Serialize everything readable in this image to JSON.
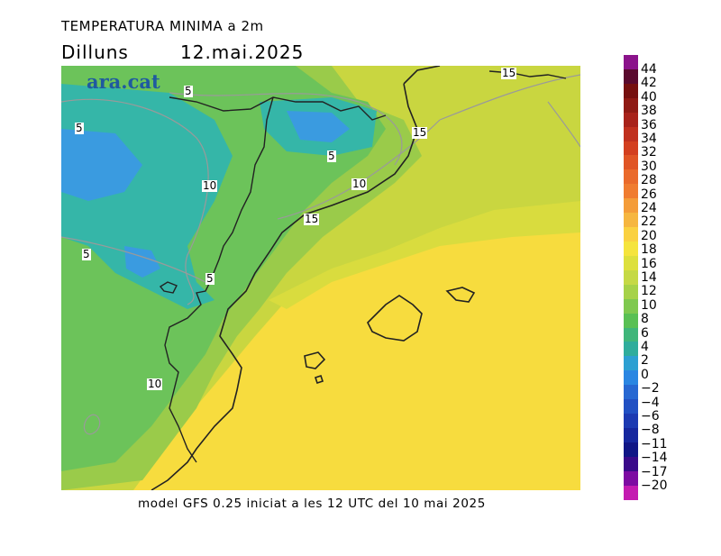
{
  "title": "TEMPERATURA MINIMA a 2m",
  "day": "Dilluns",
  "date": "12.mai.2025",
  "brand": "ara.cat",
  "footer": "model GFS 0.25 iniciat a les 12 UTC del 10 mai 2025",
  "contour_labels": [
    "5",
    "5",
    "5",
    "5",
    "5",
    "10",
    "10",
    "10",
    "15",
    "15",
    "15"
  ],
  "legend": {
    "ticks": [
      "44",
      "42",
      "40",
      "38",
      "36",
      "34",
      "32",
      "30",
      "28",
      "26",
      "24",
      "22",
      "20",
      "18",
      "16",
      "14",
      "12",
      "10",
      "8",
      "6",
      "4",
      "2",
      "0",
      "-2",
      "-4",
      "-6",
      "-8",
      "-11",
      "-14",
      "-17",
      "-20"
    ],
    "colors": [
      "#8b138b",
      "#5a0a2e",
      "#76100f",
      "#8f1a14",
      "#a8221a",
      "#c0301e",
      "#d33f1f",
      "#e05525",
      "#ea6a2b",
      "#f07c30",
      "#f49c39",
      "#f6b640",
      "#fad141",
      "#f5e43d",
      "#dde03d",
      "#c5d945",
      "#a6d248",
      "#7fc94f",
      "#59c054",
      "#3fb67a",
      "#2fad9c",
      "#2da0d2",
      "#2a86e2",
      "#2768d2",
      "#2150c3",
      "#1c3ab2",
      "#16279e",
      "#101686",
      "#3a0a8a",
      "#7d0ba2",
      "#c41bb1"
    ]
  },
  "color_scale": {
    "deep_cold": "#3a9be0",
    "cold": "#35b6a8",
    "cool": "#6cc35a",
    "mild": "#9acb4a",
    "warm": "#c9d640",
    "sea": "#f7dc3e"
  }
}
